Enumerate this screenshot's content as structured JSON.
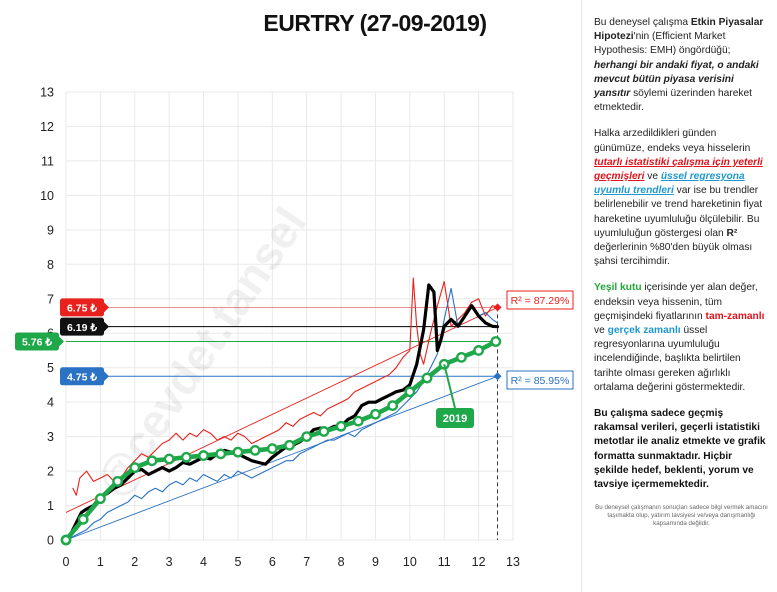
{
  "chart_data": {
    "type": "line",
    "title": "EURTRY (27-09-2019)",
    "xlim": [
      0,
      13
    ],
    "ylim": [
      0,
      13
    ],
    "x_ticks": [
      0,
      1,
      2,
      3,
      4,
      5,
      6,
      7,
      8,
      9,
      10,
      11,
      12,
      13
    ],
    "y_ticks": [
      0,
      1,
      2,
      3,
      4,
      5,
      6,
      7,
      8,
      9,
      10,
      11,
      12,
      13
    ],
    "grid": true,
    "series": [
      {
        "name": "price",
        "color": "#000000",
        "x": [
          0.0,
          0.15,
          0.3,
          0.45,
          0.6,
          0.8,
          1.0,
          1.2,
          1.4,
          1.6,
          1.8,
          2.0,
          2.2,
          2.4,
          2.6,
          2.8,
          3.0,
          3.2,
          3.4,
          3.6,
          3.8,
          4.0,
          4.2,
          4.4,
          4.6,
          4.8,
          5.0,
          5.2,
          5.4,
          5.6,
          5.8,
          6.0,
          6.2,
          6.4,
          6.6,
          6.8,
          7.0,
          7.2,
          7.4,
          7.6,
          7.8,
          8.0,
          8.2,
          8.4,
          8.6,
          8.8,
          9.0,
          9.2,
          9.4,
          9.6,
          9.8,
          10.0,
          10.2,
          10.4,
          10.55,
          10.7,
          10.8,
          10.9,
          11.0,
          11.2,
          11.4,
          11.6,
          11.8,
          12.0,
          12.2,
          12.4,
          12.55
        ],
        "y": [
          0.0,
          0.2,
          0.5,
          0.8,
          0.9,
          1.0,
          1.25,
          1.35,
          1.5,
          1.6,
          1.8,
          2.0,
          2.05,
          1.9,
          2.0,
          2.1,
          2.0,
          2.1,
          2.25,
          2.2,
          2.3,
          2.4,
          2.35,
          2.5,
          2.6,
          2.55,
          2.5,
          2.4,
          2.3,
          2.25,
          2.2,
          2.4,
          2.55,
          2.7,
          2.75,
          2.85,
          3.0,
          3.2,
          3.25,
          3.2,
          3.3,
          3.3,
          3.5,
          3.6,
          3.9,
          4.0,
          4.0,
          4.1,
          4.2,
          4.3,
          4.35,
          4.5,
          5.1,
          6.1,
          7.4,
          7.2,
          5.5,
          5.8,
          6.2,
          6.4,
          6.2,
          6.5,
          6.8,
          6.5,
          6.3,
          6.2,
          6.19
        ]
      },
      {
        "name": "peak",
        "color": "#e8211c",
        "x": [
          0.2,
          0.3,
          0.4,
          0.6,
          0.8,
          1.0,
          1.2,
          1.4,
          1.6,
          1.8,
          2.0,
          2.2,
          2.4,
          2.6,
          2.8,
          3.0,
          3.2,
          3.4,
          3.6,
          3.8,
          4.0,
          4.2,
          4.4,
          4.6,
          4.8,
          5.0,
          5.2,
          5.4,
          5.6,
          5.8,
          6.0,
          6.2,
          6.4,
          6.6,
          6.8,
          7.0,
          7.2,
          7.4,
          7.6,
          7.8,
          8.0,
          8.2,
          8.4,
          8.6,
          8.8,
          9.0,
          9.2,
          9.4,
          9.6,
          9.8,
          10.0,
          10.1,
          10.2,
          10.3,
          10.4,
          10.6,
          10.8,
          11.0,
          11.2,
          11.4,
          11.6,
          11.8,
          12.0,
          12.2,
          12.4,
          12.55
        ],
        "y": [
          1.5,
          1.3,
          1.8,
          2.0,
          1.7,
          1.8,
          1.9,
          1.7,
          1.8,
          2.1,
          2.3,
          2.5,
          2.4,
          2.6,
          2.8,
          2.9,
          3.1,
          2.9,
          3.1,
          3.0,
          3.2,
          3.1,
          2.9,
          3.0,
          2.9,
          3.1,
          3.0,
          2.8,
          2.9,
          3.0,
          3.1,
          3.2,
          3.4,
          3.3,
          3.5,
          3.6,
          3.7,
          3.6,
          3.8,
          3.9,
          4.0,
          4.1,
          4.3,
          4.4,
          4.5,
          4.6,
          4.7,
          4.8,
          5.0,
          5.3,
          5.5,
          7.6,
          6.2,
          5.4,
          5.1,
          6.0,
          6.8,
          7.5,
          6.2,
          6.4,
          6.6,
          6.9,
          7.0,
          6.5,
          6.8,
          6.75
        ]
      },
      {
        "name": "trough",
        "color": "#2a72c4",
        "x": [
          0.0,
          0.2,
          0.4,
          0.6,
          0.8,
          1.0,
          1.2,
          1.4,
          1.6,
          1.8,
          2.0,
          2.2,
          2.4,
          2.6,
          2.8,
          3.0,
          3.2,
          3.4,
          3.6,
          3.8,
          4.0,
          4.2,
          4.4,
          4.6,
          4.8,
          5.0,
          5.2,
          5.4,
          5.6,
          5.8,
          6.0,
          6.2,
          6.4,
          6.6,
          6.8,
          7.0,
          7.2,
          7.4,
          7.6,
          7.8,
          8.0,
          8.2,
          8.4,
          8.6,
          8.8,
          9.0,
          9.2,
          9.4,
          9.6,
          9.8,
          10.0,
          10.2,
          10.4,
          10.6,
          10.8,
          11.0,
          11.2,
          11.4,
          11.6,
          11.8,
          12.0,
          12.2,
          12.4,
          12.55
        ],
        "y": [
          0.0,
          0.1,
          0.2,
          0.3,
          0.5,
          0.6,
          0.8,
          0.9,
          1.0,
          1.1,
          1.3,
          1.2,
          1.4,
          1.5,
          1.4,
          1.6,
          1.7,
          1.6,
          1.8,
          1.7,
          1.9,
          1.8,
          1.7,
          1.9,
          1.8,
          2.0,
          1.9,
          1.8,
          1.9,
          2.0,
          2.1,
          2.2,
          2.3,
          2.3,
          2.5,
          2.6,
          2.7,
          2.8,
          2.9,
          2.9,
          3.0,
          3.1,
          3.0,
          3.2,
          3.3,
          3.4,
          3.5,
          3.6,
          3.7,
          3.9,
          4.1,
          4.3,
          4.6,
          5.0,
          5.4,
          6.4,
          7.3,
          6.2,
          6.5,
          6.8,
          6.5,
          6.6,
          6.4,
          6.3
        ]
      },
      {
        "name": "average",
        "color": "#1ea84a",
        "x": [
          0.0,
          0.5,
          1.0,
          1.5,
          2.0,
          2.5,
          3.0,
          3.5,
          4.0,
          4.5,
          5.0,
          5.5,
          6.0,
          6.5,
          7.0,
          7.5,
          8.0,
          8.5,
          9.0,
          9.5,
          10.0,
          10.5,
          11.0,
          11.5,
          12.0,
          12.5
        ],
        "y": [
          0.0,
          0.6,
          1.2,
          1.7,
          2.1,
          2.3,
          2.35,
          2.4,
          2.45,
          2.5,
          2.55,
          2.6,
          2.65,
          2.75,
          3.0,
          3.15,
          3.3,
          3.45,
          3.65,
          3.9,
          4.3,
          4.7,
          5.1,
          5.3,
          5.5,
          5.76
        ]
      }
    ],
    "trendlines": [
      {
        "name": "upper",
        "color": "#e8211c",
        "x": [
          0,
          12.55
        ],
        "y": [
          0.8,
          6.75
        ]
      },
      {
        "name": "lower",
        "color": "#2a72c4",
        "x": [
          0,
          12.55
        ],
        "y": [
          0.0,
          4.75
        ]
      }
    ],
    "hlines": [
      {
        "y": 6.75,
        "color": "#e8211c",
        "label": "6.75 ₺"
      },
      {
        "y": 6.19,
        "color": "#000000",
        "label": "6.19 ₺"
      },
      {
        "y": 5.76,
        "color": "#1ea84a",
        "label": "5.76 ₺"
      },
      {
        "y": 4.75,
        "color": "#2a72c4",
        "label": "4.75 ₺"
      }
    ],
    "vline_x": 12.55,
    "r2_upper": "R² = 87.29%",
    "r2_lower": "R² = 85.95%",
    "year_label": "2019",
    "watermark": "@cevdet.tansel"
  },
  "sidebar": {
    "p1": {
      "a": "Bu deneysel çalışma ",
      "b": "Etkin Piyasalar Hipotezi",
      "c": "'nin (Efficient Market Hypothesis: EMH) öngördüğü; ",
      "d": "herhangi bir andaki fiyat, o andaki mevcut bütün piyasa verisini yansıtır",
      "e": "  söylemi üzerinden hareket etmektedir."
    },
    "p2": {
      "a": "Halka arzedildikleri günden günümüze, endeks veya hisselerin ",
      "b": "tutarlı istatistiki çalışma için yeterli geçmişleri",
      "c": " ve ",
      "d": "üssel regresyona uyumlu trendleri",
      "e": " var ise bu trendler belirlenebilir ve trend hareketinin fiyat hareketine uyumluluğu ölçülebilir. Bu uyumluluğun göstergesi olan ",
      "f": "R²",
      "g": " değerlerinin %80'den büyük olması şahsi tercihimdir."
    },
    "p3": {
      "a": "Yeşil kutu",
      "b": " içerisinde yer alan değer, endeksin veya hissenin, tüm geçmişindeki fiyatlarının ",
      "c": "tam-zamanlı",
      "d": " ve ",
      "e": "gerçek zamanlı",
      "f": " üssel regresyonlarına uyumluluğu incelendiğinde, başlıkta belirtilen tarihte olması gereken ağırlıklı ortalama değerini göstermektedir."
    },
    "p4": "Bu çalışma sadece geçmiş rakamsal verileri, geçerli istatistiki metotlar ile  analiz etmekte ve grafik formatta sunmaktadır. Hiçbir şekilde hedef, beklenti, yorum ve tavsiye içermemektedir.",
    "p5": "Bu deneysel çalışmanın sonuçları sadece bilgi vermek amacını taşımakta olup, yatırım tavsiyesi ve/veya danışmanlığı kapsamında değildir."
  },
  "colors": {
    "red": "#e8211c",
    "blue": "#2a72c4",
    "green": "#1ea84a",
    "black": "#000000"
  }
}
